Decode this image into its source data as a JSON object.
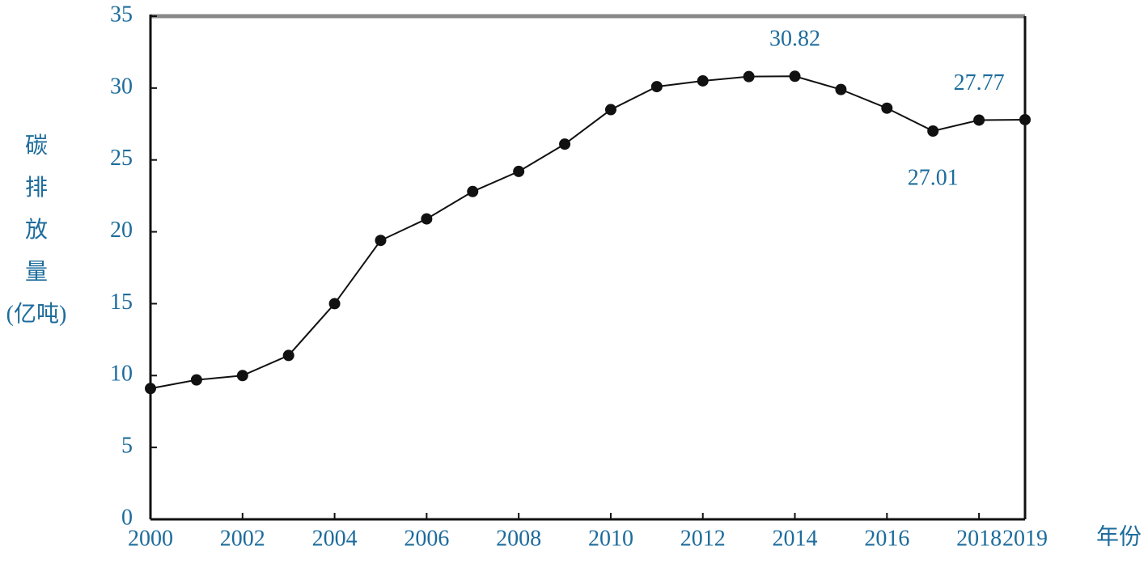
{
  "chart_data": {
    "type": "line",
    "y_label": "碳排放量(亿吨)",
    "x_label": "年份",
    "x": [
      2000,
      2001,
      2002,
      2003,
      2004,
      2005,
      2006,
      2007,
      2008,
      2009,
      2010,
      2011,
      2012,
      2013,
      2014,
      2015,
      2016,
      2017,
      2018,
      2019
    ],
    "series": [
      {
        "name": "碳排放量",
        "color": "#111111",
        "values": [
          9.1,
          9.7,
          10.0,
          11.4,
          15.0,
          19.4,
          20.9,
          22.8,
          24.2,
          26.1,
          28.5,
          30.1,
          30.5,
          30.8,
          30.82,
          29.9,
          28.6,
          27.01,
          27.77,
          27.8
        ]
      }
    ],
    "annotations": [
      {
        "label": "30.82",
        "x": 2014
      },
      {
        "label": "27.77",
        "x": 2018
      },
      {
        "label": "27.01",
        "x": 2017
      }
    ],
    "xlim": [
      2000,
      2019
    ],
    "xticks": [
      2000,
      2002,
      2004,
      2006,
      2008,
      2010,
      2012,
      2014,
      2016,
      2018,
      2019
    ],
    "ylim": [
      0,
      35
    ],
    "yticks": [
      0,
      5,
      10,
      15,
      20,
      25,
      30,
      35
    ],
    "grid": false
  }
}
